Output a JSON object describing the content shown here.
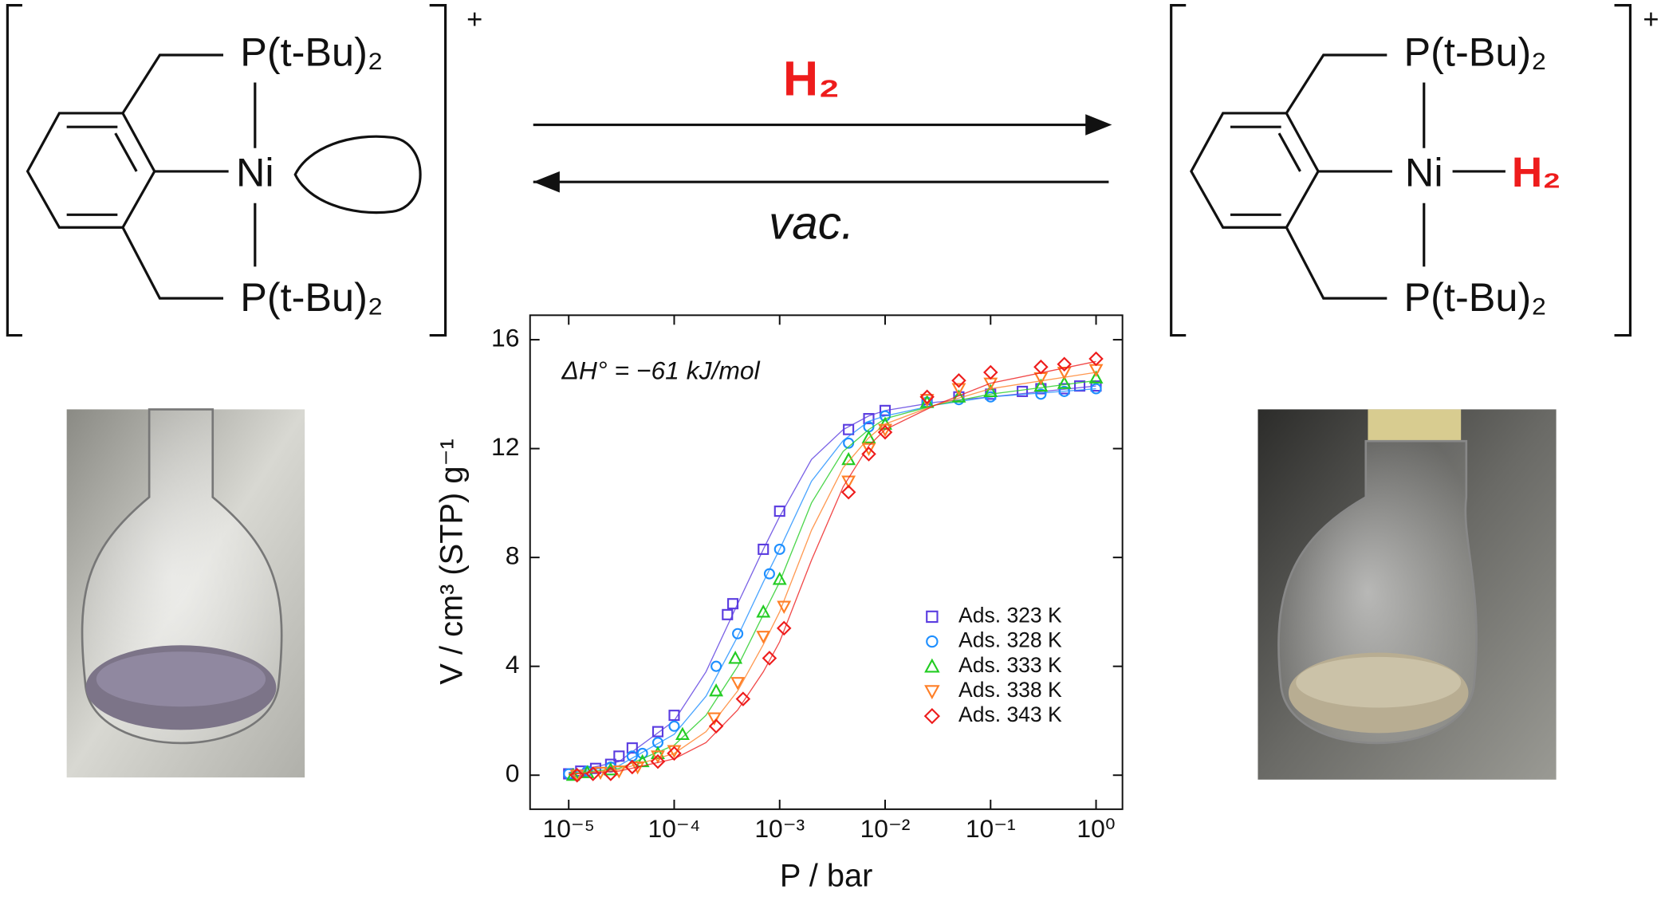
{
  "scheme": {
    "left": {
      "p_top": "P(t-Bu)₂",
      "metal": "Ni",
      "p_bottom": "P(t-Bu)₂",
      "charge": "+"
    },
    "right": {
      "p_top": "P(t-Bu)₂",
      "metal": "Ni",
      "ligand": "H₂",
      "p_bottom": "P(t-Bu)₂",
      "charge": "+"
    },
    "forward_label": "H₂",
    "reverse_label": "vac."
  },
  "chart_data": {
    "type": "scatter",
    "xlabel": "P / bar",
    "ylabel": "V / cm³ (STP) g⁻¹",
    "annotation": "ΔH° = −61 kJ/mol",
    "xscale": "log",
    "xlim": [
      4.3e-06,
      1.78
    ],
    "ylim": [
      -1.25,
      16.9
    ],
    "xticks": [
      {
        "value": 1e-05,
        "label": "10⁻⁵"
      },
      {
        "value": 0.0001,
        "label": "10⁻⁴"
      },
      {
        "value": 0.001,
        "label": "10⁻³"
      },
      {
        "value": 0.01,
        "label": "10⁻²"
      },
      {
        "value": 0.1,
        "label": "10⁻¹"
      },
      {
        "value": 1,
        "label": "10⁰"
      }
    ],
    "yticks": [
      0,
      4,
      8,
      12,
      16
    ],
    "legend": "lower right",
    "fit_x": [
      1e-05,
      3e-05,
      0.0001,
      0.0002,
      0.0004,
      0.0007,
      0.001,
      0.002,
      0.004,
      0.007,
      0.01,
      0.03,
      0.1,
      1
    ],
    "series": [
      {
        "name": "Ads. 323 K",
        "color": "#5a3ce0",
        "marker": "square",
        "x": [
          1e-05,
          1.3e-05,
          1.8e-05,
          2.5e-05,
          3e-05,
          4e-05,
          7e-05,
          0.0001,
          0.00032,
          0.00036,
          0.0007,
          0.001,
          0.0045,
          0.007,
          0.01,
          0.025,
          0.05,
          0.1,
          0.2,
          0.3,
          0.5,
          0.7,
          1
        ],
        "values": [
          0.05,
          0.15,
          0.25,
          0.4,
          0.7,
          1.0,
          1.6,
          2.2,
          5.9,
          6.3,
          8.3,
          9.7,
          12.7,
          13.1,
          13.4,
          13.8,
          13.9,
          14.0,
          14.1,
          14.2,
          14.2,
          14.3,
          14.3
        ],
        "fit_values": [
          0.1,
          0.5,
          2.0,
          3.8,
          6.3,
          8.3,
          9.5,
          11.6,
          12.7,
          13.2,
          13.4,
          13.7,
          13.9,
          14.3
        ]
      },
      {
        "name": "Ads. 328 K",
        "color": "#1e8fff",
        "marker": "circle",
        "x": [
          1e-05,
          1.5e-05,
          2.5e-05,
          4e-05,
          5e-05,
          7e-05,
          0.0001,
          0.00025,
          0.0004,
          0.0008,
          0.001,
          0.0045,
          0.007,
          0.01,
          0.025,
          0.05,
          0.1,
          0.3,
          0.5,
          1
        ],
        "values": [
          0.05,
          0.15,
          0.3,
          0.7,
          0.8,
          1.2,
          1.8,
          4.0,
          5.2,
          7.4,
          8.3,
          12.2,
          12.8,
          13.2,
          13.7,
          13.8,
          13.9,
          14.0,
          14.1,
          14.2
        ],
        "fit_values": [
          0.08,
          0.35,
          1.5,
          2.9,
          5.1,
          7.1,
          8.3,
          10.8,
          12.3,
          13.0,
          13.2,
          13.6,
          13.9,
          14.2
        ]
      },
      {
        "name": "Ads. 333 K",
        "color": "#22cc22",
        "marker": "triangle-up",
        "x": [
          1.1e-05,
          1.5e-05,
          2.5e-05,
          5e-05,
          7e-05,
          0.00012,
          0.00025,
          0.00038,
          0.0007,
          0.001,
          0.0045,
          0.007,
          0.01,
          0.025,
          0.05,
          0.1,
          0.3,
          0.5,
          1
        ],
        "values": [
          0.0,
          0.1,
          0.2,
          0.5,
          0.8,
          1.5,
          3.1,
          4.3,
          6.0,
          7.2,
          11.6,
          12.4,
          12.9,
          13.7,
          13.9,
          14.1,
          14.3,
          14.4,
          14.6
        ],
        "fit_values": [
          0.05,
          0.25,
          1.1,
          2.2,
          4.0,
          5.9,
          7.1,
          10.0,
          11.9,
          12.7,
          13.1,
          13.6,
          14.0,
          14.5
        ]
      },
      {
        "name": "Ads. 338 K",
        "color": "#ff7f27",
        "marker": "triangle-down",
        "x": [
          1.2e-05,
          2e-05,
          3e-05,
          4.5e-05,
          7e-05,
          0.0001,
          0.00024,
          0.0004,
          0.0007,
          0.0011,
          0.0045,
          0.007,
          0.01,
          0.025,
          0.05,
          0.1,
          0.3,
          0.5,
          1
        ],
        "values": [
          0.0,
          0.1,
          0.15,
          0.3,
          0.7,
          0.9,
          2.1,
          3.4,
          5.1,
          6.2,
          10.8,
          12.0,
          12.7,
          13.8,
          14.2,
          14.4,
          14.6,
          14.8,
          14.9
        ],
        "fit_values": [
          0.04,
          0.2,
          0.8,
          1.6,
          3.1,
          4.8,
          6.0,
          9.0,
          11.3,
          12.4,
          12.9,
          13.6,
          14.2,
          14.8
        ]
      },
      {
        "name": "Ads. 343 K",
        "color": "#ee1c1c",
        "marker": "diamond",
        "x": [
          1.2e-05,
          1.7e-05,
          2.5e-05,
          4e-05,
          7e-05,
          0.0001,
          0.00025,
          0.00045,
          0.0008,
          0.0011,
          0.0045,
          0.007,
          0.01,
          0.025,
          0.05,
          0.1,
          0.3,
          0.5,
          1
        ],
        "values": [
          0.0,
          0.05,
          0.05,
          0.3,
          0.5,
          0.8,
          1.8,
          2.8,
          4.3,
          5.4,
          10.4,
          11.8,
          12.6,
          13.9,
          14.5,
          14.8,
          15.0,
          15.1,
          15.3
        ],
        "fit_values": [
          0.03,
          0.15,
          0.6,
          1.2,
          2.4,
          3.8,
          4.9,
          7.9,
          10.6,
          12.1,
          12.7,
          13.6,
          14.4,
          15.2
        ]
      }
    ]
  }
}
